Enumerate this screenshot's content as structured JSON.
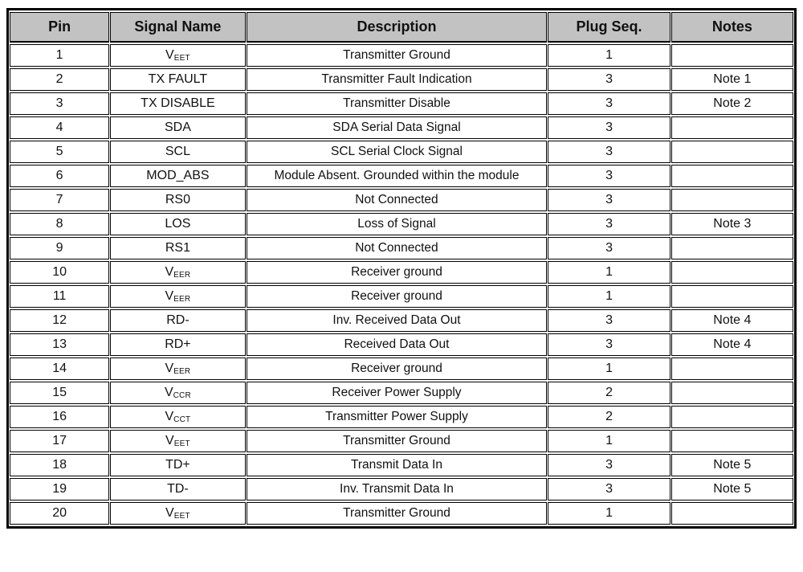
{
  "table": {
    "colors": {
      "header_bg": "#c2c2c2",
      "border": "#000000",
      "row_bg": "#ffffff"
    },
    "columns": [
      {
        "label": "Pin"
      },
      {
        "label": "Signal Name"
      },
      {
        "label": "Description"
      },
      {
        "label": "Plug Seq."
      },
      {
        "label": "Notes"
      }
    ],
    "rows": [
      {
        "pin": "1",
        "signal_base": "V",
        "signal_sub": "EET",
        "description": "Transmitter Ground",
        "plug_seq": "1",
        "notes": ""
      },
      {
        "pin": "2",
        "signal_base": "TX FAULT",
        "signal_sub": "",
        "description": "Transmitter Fault Indication",
        "plug_seq": "3",
        "notes": "Note 1"
      },
      {
        "pin": "3",
        "signal_base": "TX DISABLE",
        "signal_sub": "",
        "description": "Transmitter Disable",
        "plug_seq": "3",
        "notes": "Note 2"
      },
      {
        "pin": "4",
        "signal_base": "SDA",
        "signal_sub": "",
        "description": "SDA Serial Data Signal",
        "plug_seq": "3",
        "notes": ""
      },
      {
        "pin": "5",
        "signal_base": "SCL",
        "signal_sub": "",
        "description": "SCL Serial Clock Signal",
        "plug_seq": "3",
        "notes": ""
      },
      {
        "pin": "6",
        "signal_base": "MOD_ABS",
        "signal_sub": "",
        "description": "Module Absent. Grounded within the module",
        "plug_seq": "3",
        "notes": ""
      },
      {
        "pin": "7",
        "signal_base": "RS0",
        "signal_sub": "",
        "description": "Not Connected",
        "plug_seq": "3",
        "notes": ""
      },
      {
        "pin": "8",
        "signal_base": "LOS",
        "signal_sub": "",
        "description": "Loss of Signal",
        "plug_seq": "3",
        "notes": "Note 3"
      },
      {
        "pin": "9",
        "signal_base": "RS1",
        "signal_sub": "",
        "description": "Not Connected",
        "plug_seq": "3",
        "notes": ""
      },
      {
        "pin": "10",
        "signal_base": "V",
        "signal_sub": "EER",
        "description": "Receiver ground",
        "plug_seq": "1",
        "notes": ""
      },
      {
        "pin": "11",
        "signal_base": "V",
        "signal_sub": "EER",
        "description": "Receiver ground",
        "plug_seq": "1",
        "notes": ""
      },
      {
        "pin": "12",
        "signal_base": "RD-",
        "signal_sub": "",
        "description": "Inv. Received Data Out",
        "plug_seq": "3",
        "notes": "Note 4"
      },
      {
        "pin": "13",
        "signal_base": "RD+",
        "signal_sub": "",
        "description": "Received Data Out",
        "plug_seq": "3",
        "notes": "Note 4"
      },
      {
        "pin": "14",
        "signal_base": "V",
        "signal_sub": "EER",
        "description": "Receiver ground",
        "plug_seq": "1",
        "notes": ""
      },
      {
        "pin": "15",
        "signal_base": "V",
        "signal_sub": "CCR",
        "description": "Receiver Power Supply",
        "plug_seq": "2",
        "notes": ""
      },
      {
        "pin": "16",
        "signal_base": "V",
        "signal_sub": "CCT",
        "description": "Transmitter Power Supply",
        "plug_seq": "2",
        "notes": ""
      },
      {
        "pin": "17",
        "signal_base": "V",
        "signal_sub": "EET",
        "description": "Transmitter Ground",
        "plug_seq": "1",
        "notes": ""
      },
      {
        "pin": "18",
        "signal_base": "TD+",
        "signal_sub": "",
        "description": "Transmit Data In",
        "plug_seq": "3",
        "notes": "Note 5"
      },
      {
        "pin": "19",
        "signal_base": "TD-",
        "signal_sub": "",
        "description": "Inv. Transmit Data In",
        "plug_seq": "3",
        "notes": "Note 5"
      },
      {
        "pin": "20",
        "signal_base": "V",
        "signal_sub": "EET",
        "description": "Transmitter Ground",
        "plug_seq": "1",
        "notes": ""
      }
    ]
  }
}
